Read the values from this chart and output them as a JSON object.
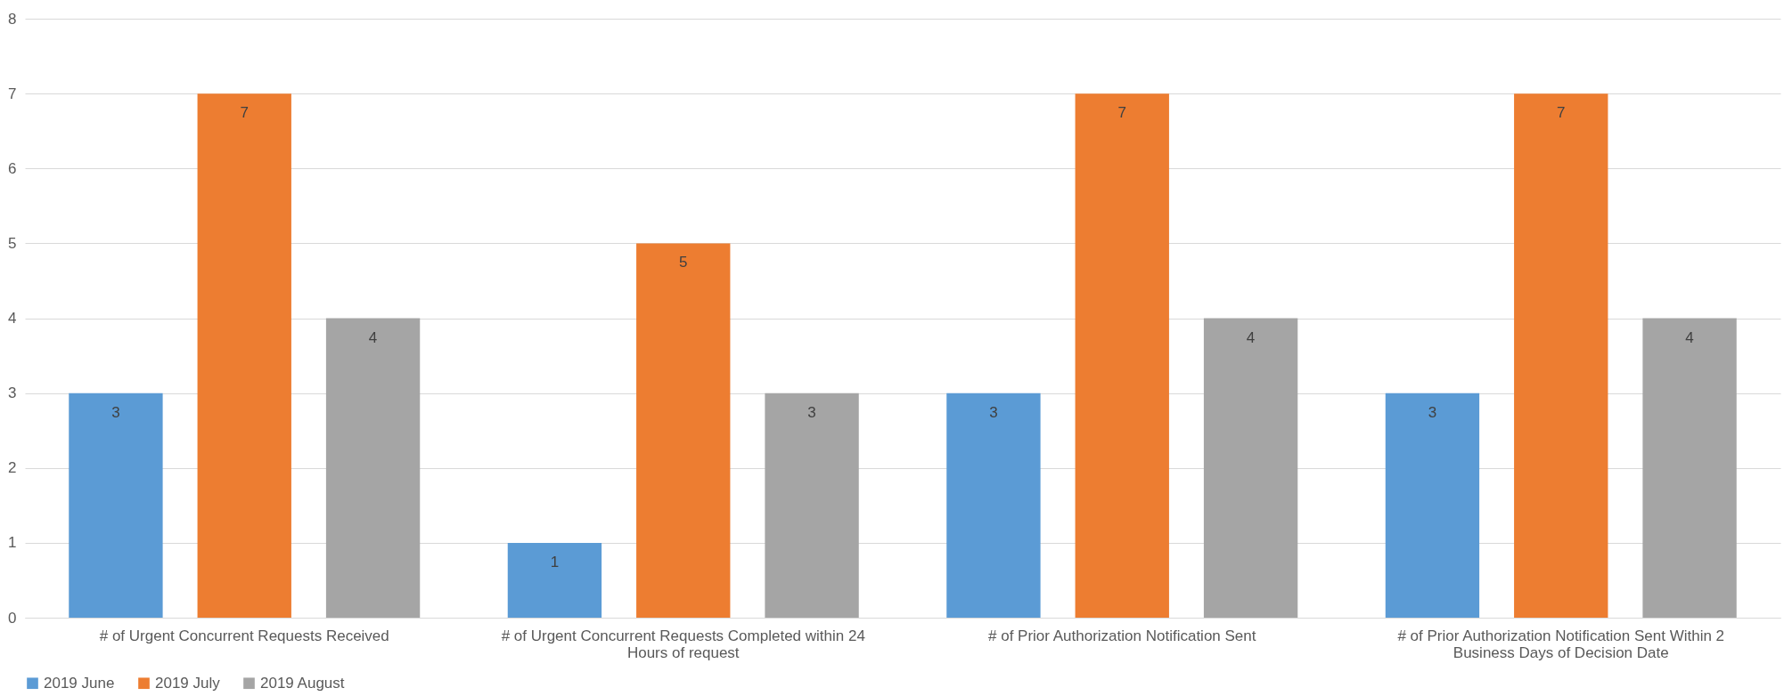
{
  "chart_data": {
    "type": "bar",
    "categories": [
      "# of Urgent Concurrent Requests Received",
      "# of Urgent Concurrent Requests Completed within 24 Hours of request",
      "# of Prior Authorization Notification Sent",
      "# of Prior Authorization Notification Sent Within 2 Business Days of Decision Date"
    ],
    "series": [
      {
        "name": "2019 June",
        "color": "#5b9bd5",
        "values": [
          3,
          1,
          3,
          3
        ]
      },
      {
        "name": "2019 July",
        "color": "#ed7d31",
        "values": [
          7,
          5,
          7,
          7
        ]
      },
      {
        "name": "2019 August",
        "color": "#a5a5a5",
        "values": [
          4,
          3,
          4,
          4
        ]
      }
    ],
    "ylim": [
      0,
      8
    ],
    "yticks": [
      0,
      1,
      2,
      3,
      4,
      5,
      6,
      7,
      8
    ],
    "grid": "y",
    "legend": "bottom",
    "data_labels": true
  }
}
